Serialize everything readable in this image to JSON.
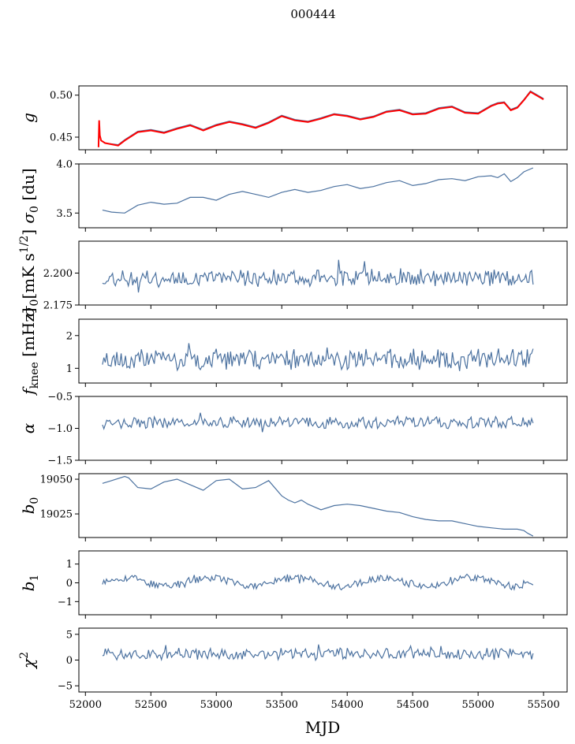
{
  "figure": {
    "suptitle": "000444",
    "xlabel": "MJD"
  },
  "colors": {
    "series": "#4c72a0",
    "fit": "#ff0000",
    "frame": "#000000"
  },
  "chart_data": [
    {
      "type": "line",
      "id": "g",
      "ylabel": "g",
      "ylabel_sub": "",
      "xlim": [
        51950,
        55680
      ],
      "ylim": [
        0.435,
        0.511
      ],
      "yticks": [
        0.45,
        0.5
      ],
      "ytick_labels": [
        "0.45",
        "0.50"
      ],
      "xticks": [
        52000,
        52500,
        53000,
        53500,
        54000,
        54500,
        55000,
        55500
      ],
      "xtick_labels": [
        "52000",
        "52500",
        "53000",
        "53500",
        "54000",
        "54500",
        "55000",
        "55500"
      ],
      "show_xtick_labels": false,
      "series": [
        {
          "name": "g",
          "color": "#4c72a0",
          "x": [
            52110,
            52120,
            52150,
            52250,
            52300,
            52400,
            52500,
            52600,
            52700,
            52800,
            52900,
            53000,
            53100,
            53200,
            53300,
            53400,
            53500,
            53600,
            53700,
            53800,
            53900,
            54000,
            54100,
            54200,
            54300,
            54400,
            54500,
            54600,
            54700,
            54800,
            54900,
            55000,
            55100,
            55150,
            55200,
            55250,
            55300,
            55350,
            55400,
            55500
          ],
          "y": [
            0.452,
            0.446,
            0.443,
            0.441,
            0.447,
            0.457,
            0.459,
            0.456,
            0.461,
            0.465,
            0.459,
            0.465,
            0.469,
            0.466,
            0.462,
            0.468,
            0.476,
            0.471,
            0.469,
            0.473,
            0.478,
            0.476,
            0.472,
            0.475,
            0.481,
            0.483,
            0.478,
            0.479,
            0.485,
            0.487,
            0.48,
            0.479,
            0.488,
            0.491,
            0.492,
            0.483,
            0.486,
            0.495,
            0.505,
            0.496
          ]
        },
        {
          "name": "fit",
          "color": "#ff0000",
          "x": [
            52100,
            52105,
            52110,
            52120,
            52150,
            52250,
            52300,
            52400,
            52500,
            52600,
            52700,
            52800,
            52900,
            53000,
            53100,
            53200,
            53300,
            53400,
            53500,
            53600,
            53700,
            53800,
            53900,
            54000,
            54100,
            54200,
            54300,
            54400,
            54500,
            54600,
            54700,
            54800,
            54900,
            55000,
            55100,
            55150,
            55200,
            55250,
            55300,
            55350,
            55400,
            55500
          ],
          "y": [
            0.438,
            0.47,
            0.452,
            0.446,
            0.443,
            0.44,
            0.446,
            0.456,
            0.458,
            0.455,
            0.46,
            0.464,
            0.458,
            0.464,
            0.468,
            0.465,
            0.461,
            0.467,
            0.475,
            0.47,
            0.468,
            0.472,
            0.477,
            0.475,
            0.471,
            0.474,
            0.48,
            0.482,
            0.477,
            0.478,
            0.484,
            0.486,
            0.479,
            0.478,
            0.487,
            0.49,
            0.491,
            0.482,
            0.485,
            0.494,
            0.504,
            0.495
          ]
        }
      ]
    },
    {
      "type": "line",
      "id": "sigma0_du",
      "ylabel": "σ",
      "ylabel_sub": "0",
      "ylabel_suffix": " [du]",
      "xlim": [
        51950,
        55680
      ],
      "ylim": [
        3.35,
        4.0
      ],
      "yticks": [
        3.5,
        4.0
      ],
      "ytick_labels": [
        "3.5",
        "4.0"
      ],
      "show_xtick_labels": false,
      "series": [
        {
          "name": "sigma0",
          "color": "#4c72a0",
          "x": [
            52130,
            52200,
            52300,
            52400,
            52500,
            52600,
            52700,
            52800,
            52900,
            53000,
            53100,
            53200,
            53300,
            53400,
            53500,
            53600,
            53700,
            53800,
            53900,
            54000,
            54100,
            54200,
            54300,
            54400,
            54500,
            54600,
            54700,
            54800,
            54900,
            55000,
            55100,
            55150,
            55200,
            55250,
            55300,
            55350,
            55420
          ],
          "y": [
            3.53,
            3.51,
            3.5,
            3.58,
            3.61,
            3.59,
            3.6,
            3.66,
            3.66,
            3.63,
            3.69,
            3.72,
            3.69,
            3.66,
            3.71,
            3.74,
            3.71,
            3.73,
            3.77,
            3.79,
            3.75,
            3.77,
            3.81,
            3.83,
            3.78,
            3.8,
            3.84,
            3.85,
            3.83,
            3.87,
            3.88,
            3.86,
            3.9,
            3.82,
            3.86,
            3.92,
            3.96
          ]
        }
      ]
    },
    {
      "type": "line",
      "id": "sigma0_mk",
      "ylabel": "σ",
      "ylabel_sub": "0",
      "ylabel_suffix": "[mK s",
      "ylabel_sup": "1/2",
      "ylabel_end": "]",
      "xlim": [
        51950,
        55680
      ],
      "ylim": [
        2.175,
        2.225
      ],
      "yticks": [
        2.175,
        2.2
      ],
      "ytick_labels": [
        "2.175",
        "2.200"
      ],
      "show_xtick_labels": false,
      "noise": {
        "seed": 11,
        "n": 300,
        "x_start": 52130,
        "x_end": 55420,
        "base": 2.196,
        "amp": 0.006
      },
      "series": [
        {
          "name": "white-noise",
          "color": "#4c72a0"
        }
      ]
    },
    {
      "type": "line",
      "id": "fknee",
      "ylabel": "f",
      "ylabel_sub": "knee",
      "ylabel_suffix": " [mHz]",
      "xlim": [
        51950,
        55680
      ],
      "ylim": [
        0.55,
        2.5
      ],
      "yticks": [
        1,
        2
      ],
      "ytick_labels": [
        "1",
        "2"
      ],
      "show_xtick_labels": false,
      "noise": {
        "seed": 23,
        "n": 300,
        "x_start": 52130,
        "x_end": 55420,
        "base": 1.28,
        "amp": 0.28
      },
      "series": [
        {
          "name": "fknee",
          "color": "#4c72a0"
        }
      ]
    },
    {
      "type": "line",
      "id": "alpha",
      "ylabel": "α",
      "ylabel_sub": "",
      "xlim": [
        51950,
        55680
      ],
      "ylim": [
        -1.5,
        -0.5
      ],
      "yticks": [
        -1.5,
        -1.0,
        -0.5
      ],
      "ytick_labels": [
        "−1.5",
        "−1.0",
        "−0.5"
      ],
      "show_xtick_labels": false,
      "noise": {
        "seed": 37,
        "n": 300,
        "x_start": 52130,
        "x_end": 55420,
        "base": -0.91,
        "amp": 0.08
      },
      "series": [
        {
          "name": "alpha",
          "color": "#4c72a0"
        }
      ]
    },
    {
      "type": "line",
      "id": "b0",
      "ylabel": "b",
      "ylabel_sub": "0",
      "xlim": [
        51950,
        55680
      ],
      "ylim": [
        19008,
        19054
      ],
      "yticks": [
        19025,
        19050
      ],
      "ytick_labels": [
        "19025",
        "19050"
      ],
      "show_xtick_labels": false,
      "series": [
        {
          "name": "b0",
          "color": "#4c72a0",
          "x": [
            52130,
            52200,
            52300,
            52330,
            52400,
            52500,
            52600,
            52700,
            52800,
            52900,
            53000,
            53100,
            53200,
            53300,
            53400,
            53500,
            53550,
            53600,
            53650,
            53700,
            53800,
            53900,
            54000,
            54100,
            54200,
            54300,
            54400,
            54500,
            54600,
            54700,
            54800,
            54900,
            55000,
            55100,
            55200,
            55300,
            55350,
            55380,
            55420
          ],
          "y": [
            19047,
            19049,
            19052,
            19051,
            19044,
            19043,
            19048,
            19050,
            19046,
            19042,
            19049,
            19050,
            19043,
            19044,
            19049,
            19038,
            19035,
            19033,
            19035,
            19032,
            19028,
            19031,
            19032,
            19031,
            19029,
            19027,
            19026,
            19023,
            19021,
            19020,
            19020,
            19018,
            19016,
            19015,
            19014,
            19014,
            19013,
            19011,
            19009
          ]
        }
      ]
    },
    {
      "type": "line",
      "id": "b1",
      "ylabel": "b",
      "ylabel_sub": "1",
      "xlim": [
        51950,
        55680
      ],
      "ylim": [
        -1.7,
        1.7
      ],
      "yticks": [
        -1,
        0,
        1
      ],
      "ytick_labels": [
        "−1",
        "0",
        "1"
      ],
      "show_xtick_labels": false,
      "noise": {
        "seed": 53,
        "n": 320,
        "x_start": 52130,
        "x_end": 55420,
        "base": 0.05,
        "amp": 0.18,
        "wave": 0.22
      },
      "series": [
        {
          "name": "b1",
          "color": "#4c72a0"
        }
      ]
    },
    {
      "type": "line",
      "id": "chi2",
      "ylabel": "χ",
      "ylabel_sup": "2",
      "xlim": [
        51950,
        55680
      ],
      "ylim": [
        -6.2,
        6.2
      ],
      "yticks": [
        -5,
        0,
        5
      ],
      "ytick_labels": [
        "−5",
        "0",
        "5"
      ],
      "show_xtick_labels": true,
      "noise": {
        "seed": 71,
        "n": 300,
        "x_start": 52130,
        "x_end": 55420,
        "base": 1.2,
        "amp": 1.0
      },
      "series": [
        {
          "name": "chi2",
          "color": "#4c72a0"
        }
      ]
    }
  ]
}
